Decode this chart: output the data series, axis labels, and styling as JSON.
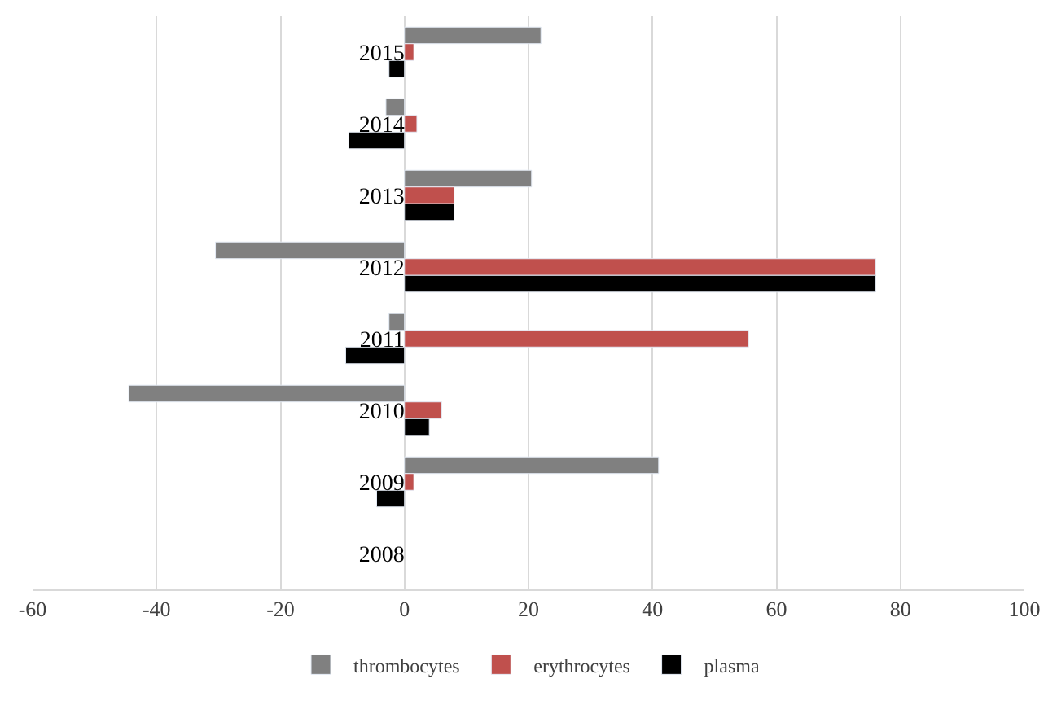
{
  "chart_data": {
    "type": "bar",
    "orientation": "horizontal",
    "categories": [
      "2015",
      "2014",
      "2013",
      "2012",
      "2011",
      "2010",
      "2009",
      "2008"
    ],
    "series": [
      {
        "name": "thrombocytes",
        "color": "#808080",
        "values": [
          22,
          -3,
          20.5,
          -30.5,
          -2.5,
          -44.5,
          41,
          null
        ]
      },
      {
        "name": "erythrocytes",
        "color": "#c0504d",
        "values": [
          1.5,
          2,
          8,
          76,
          55.5,
          6,
          1.5,
          null
        ]
      },
      {
        "name": "plasma",
        "color": "#000000",
        "values": [
          -2.5,
          -9,
          8,
          76,
          -9.5,
          4,
          -4.5,
          null
        ]
      }
    ],
    "xlim": [
      -60,
      100
    ],
    "xticks": [
      -60,
      -40,
      -20,
      0,
      20,
      40,
      60,
      80,
      100
    ],
    "grid": "x",
    "legend": "bottom"
  }
}
